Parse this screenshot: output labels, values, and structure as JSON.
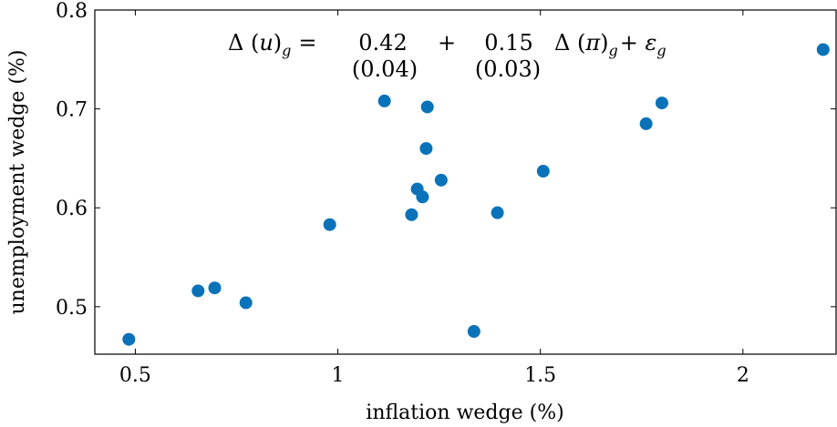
{
  "chart_data": {
    "type": "scatter",
    "xlabel": "inflation wedge (%)",
    "ylabel": "unemployment wedge (%)",
    "annotation": {
      "lhs": "Δ (",
      "lhs_var": "u",
      "lhs_close": ")",
      "lhs_sub": "g",
      "eq": "=",
      "coef1": "0.42",
      "plus": "+",
      "coef2": "0.15",
      "rhs": "Δ (",
      "rhs_var": "π",
      "rhs_close": ")",
      "rhs_sub": "g",
      "rhs_tail": "+ ",
      "rhs_eps": "ε",
      "tail_sub": "g",
      "se1": "(0.04)",
      "se2": "(0.03)"
    },
    "color": "#0a72b8",
    "x": [
      0.484,
      0.655,
      0.696,
      0.773,
      0.98,
      1.115,
      1.221,
      1.218,
      1.255,
      1.196,
      1.209,
      1.182,
      1.336,
      1.394,
      1.507,
      1.761,
      1.8,
      2.198
    ],
    "values": [
      0.467,
      0.516,
      0.519,
      0.504,
      0.583,
      0.708,
      0.702,
      0.66,
      0.628,
      0.619,
      0.611,
      0.593,
      0.475,
      0.595,
      0.637,
      0.685,
      0.706,
      0.76
    ],
    "xlim": [
      0.4,
      2.23
    ],
    "ylim": [
      0.452,
      0.8
    ],
    "xticks": [
      0.5,
      1,
      1.5,
      2
    ],
    "yticks": [
      0.5,
      0.6,
      0.7,
      0.8
    ]
  }
}
